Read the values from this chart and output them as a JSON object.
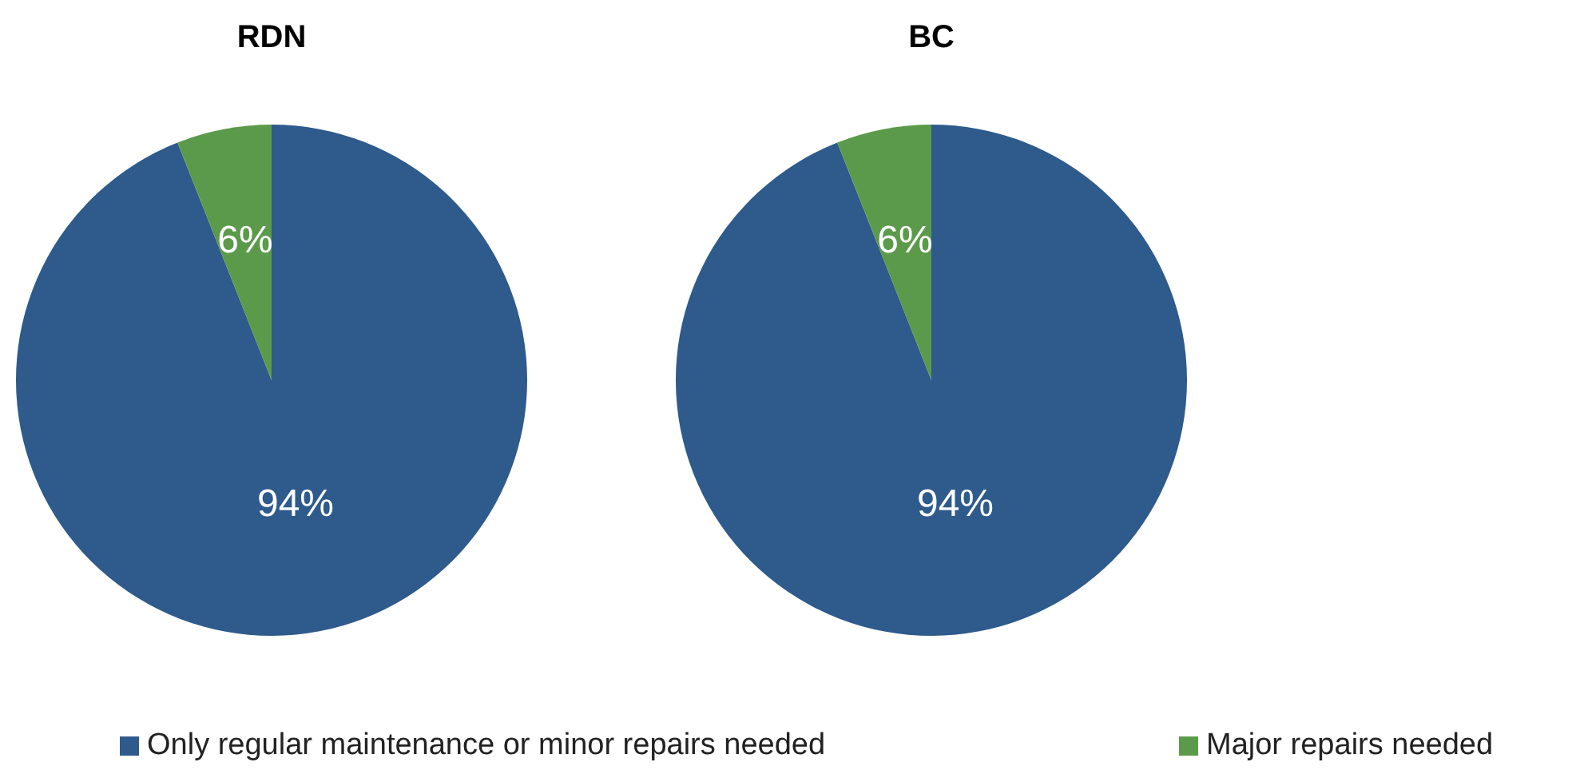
{
  "chart_data": [
    {
      "type": "pie",
      "title": "RDN",
      "categories": [
        "Only regular maintenance or minor repairs needed",
        "Major repairs needed"
      ],
      "values": [
        94,
        6
      ],
      "colors": [
        "#2e5a8c",
        "#5b9a4a"
      ],
      "value_labels": [
        "94%",
        "6%"
      ],
      "legend": "bottom"
    },
    {
      "type": "pie",
      "title": "BC",
      "categories": [
        null,
        null
      ],
      "values": [
        94,
        6
      ],
      "colors": [
        "#2e5a8c",
        "#5b9a4a"
      ],
      "value_labels": [
        "94%",
        "6%"
      ]
    }
  ]
}
